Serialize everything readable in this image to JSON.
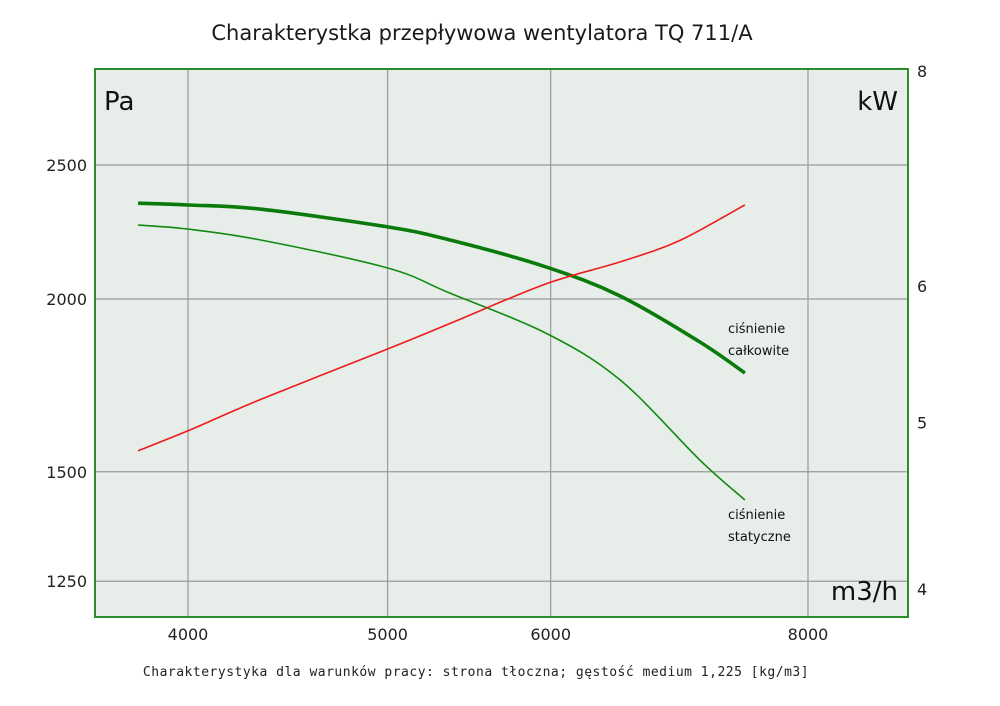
{
  "chart_data": {
    "type": "line",
    "title": "Charakterystka przepływowa wentylatora TQ 711/A",
    "footnote": "Charakterystyka dla warunków pracy: strona tłoczna; gęstość medium 1,225 [kg/m3]",
    "xlabel": "m3/h",
    "ylabel_left": "Pa",
    "ylabel_right": "kW",
    "x_scale": "log",
    "y_scale_left": "log",
    "y_scale_right": "log",
    "xlim": [
      3500,
      9000
    ],
    "ylim_left": [
      1170,
      2850
    ],
    "ylim_right": [
      3.8,
      8
    ],
    "x_ticks": [
      4000,
      5000,
      6000,
      8000
    ],
    "y_ticks_left": [
      1250,
      1500,
      2000,
      2500
    ],
    "y_ticks_right": [
      4,
      5,
      6,
      8
    ],
    "grid": true,
    "plot_background": "#e7ede9",
    "frame_color": "#2e8b2e",
    "series": [
      {
        "name": "ciśnienie całkowite",
        "label_lines": [
          "ciśnienie",
          "całkowite"
        ],
        "axis": "left",
        "color": "#0a7a0a",
        "style": "thick",
        "x": [
          3783,
          4000,
          4336,
          5000,
          5359,
          5966,
          6484,
          7088,
          7455
        ],
        "y": [
          2346,
          2339,
          2323,
          2255,
          2207,
          2110,
          2010,
          1862,
          1768
        ]
      },
      {
        "name": "ciśnienie statyczne",
        "label_lines": [
          "ciśnienie",
          "statyczne"
        ],
        "axis": "left",
        "color": "#118a11",
        "style": "thin",
        "x": [
          3783,
          4000,
          4336,
          5000,
          5359,
          5966,
          6484,
          7088,
          7455
        ],
        "y": [
          2262,
          2247,
          2207,
          2106,
          2020,
          1890,
          1748,
          1530,
          1431
        ]
      },
      {
        "name": "moc",
        "axis": "right",
        "color": "#ee1c1c",
        "style": "thin",
        "x": [
          3783,
          4000,
          4336,
          5000,
          5359,
          5966,
          6484,
          6932,
          7455
        ],
        "y": [
          4.8,
          4.93,
          5.14,
          5.5,
          5.69,
          6.0,
          6.18,
          6.36,
          6.67
        ]
      }
    ]
  }
}
